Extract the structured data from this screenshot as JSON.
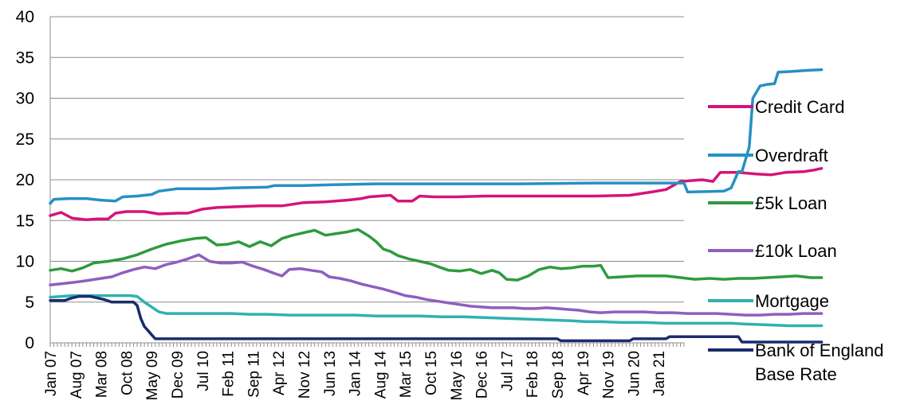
{
  "chart_data": {
    "type": "line",
    "title": "",
    "xlabel": "",
    "ylabel": "",
    "ylim": [
      0,
      40
    ],
    "y_ticks": [
      "0",
      "5",
      "10",
      "15",
      "20",
      "25",
      "30",
      "35",
      "40"
    ],
    "x_tick_labels": [
      "Jan 07",
      "Aug 07",
      "Mar 08",
      "Oct 08",
      "May 09",
      "Dec 09",
      "Jul 10",
      "Feb 11",
      "Sep 11",
      "Apr 12",
      "Nov 12",
      "Jun 13",
      "Jan 14",
      "Aug 14",
      "Mar 15",
      "Oct 15",
      "May 16",
      "Dec 16",
      "Jul 17",
      "Feb 18",
      "Sep 18",
      "Apr 19",
      "Nov 19",
      "Jun 20",
      "Jan 21"
    ],
    "x_range_months": "Jan 07 - Aug 21 (monthly)",
    "grid": "horizontal",
    "legend_position": "right",
    "series": [
      {
        "name": "Credit Card",
        "color": "#d6137a",
        "points": [
          [
            0,
            15.6
          ],
          [
            3,
            16.0
          ],
          [
            6,
            15.3
          ],
          [
            10,
            15.1
          ],
          [
            13,
            15.2
          ],
          [
            16,
            15.2
          ],
          [
            18,
            15.9
          ],
          [
            21,
            16.1
          ],
          [
            26,
            16.1
          ],
          [
            30,
            15.8
          ],
          [
            35,
            15.9
          ],
          [
            38,
            15.9
          ],
          [
            42,
            16.4
          ],
          [
            46,
            16.6
          ],
          [
            52,
            16.7
          ],
          [
            58,
            16.8
          ],
          [
            64,
            16.8
          ],
          [
            70,
            17.2
          ],
          [
            76,
            17.3
          ],
          [
            82,
            17.5
          ],
          [
            86,
            17.7
          ],
          [
            88,
            17.9
          ],
          [
            94,
            18.1
          ],
          [
            96,
            17.4
          ],
          [
            100,
            17.4
          ],
          [
            102,
            18.0
          ],
          [
            106,
            17.9
          ],
          [
            112,
            17.9
          ],
          [
            120,
            18.0
          ],
          [
            135,
            18.0
          ],
          [
            150,
            18.0
          ],
          [
            160,
            18.1
          ],
          [
            166,
            18.5
          ],
          [
            170,
            18.8
          ],
          [
            174,
            19.8
          ],
          [
            180,
            20.0
          ],
          [
            183,
            19.8
          ],
          [
            185,
            20.9
          ],
          [
            190,
            20.9
          ],
          [
            195,
            20.7
          ],
          [
            199,
            20.6
          ],
          [
            203,
            20.9
          ],
          [
            208,
            21.0
          ],
          [
            211,
            21.2
          ],
          [
            213,
            21.4
          ]
        ]
      },
      {
        "name": "Overdraft",
        "color": "#2591c3",
        "points": [
          [
            0,
            17.1
          ],
          [
            1,
            17.6
          ],
          [
            5,
            17.7
          ],
          [
            10,
            17.7
          ],
          [
            14,
            17.5
          ],
          [
            18,
            17.4
          ],
          [
            20,
            17.9
          ],
          [
            24,
            18.0
          ],
          [
            28,
            18.2
          ],
          [
            30,
            18.6
          ],
          [
            35,
            18.9
          ],
          [
            45,
            18.9
          ],
          [
            50,
            19.0
          ],
          [
            60,
            19.1
          ],
          [
            62,
            19.3
          ],
          [
            70,
            19.3
          ],
          [
            78,
            19.4
          ],
          [
            90,
            19.5
          ],
          [
            100,
            19.5
          ],
          [
            110,
            19.5
          ],
          [
            130,
            19.5
          ],
          [
            150,
            19.6
          ],
          [
            167,
            19.6
          ],
          [
            175,
            19.6
          ],
          [
            176,
            18.5
          ],
          [
            186,
            18.6
          ],
          [
            188,
            19.0
          ],
          [
            190,
            21.0
          ],
          [
            191,
            21.0
          ],
          [
            193,
            24.0
          ],
          [
            194,
            30.0
          ],
          [
            196,
            31.5
          ],
          [
            198,
            31.7
          ],
          [
            200,
            31.8
          ],
          [
            201,
            33.2
          ],
          [
            205,
            33.3
          ],
          [
            208,
            33.4
          ],
          [
            213,
            33.5
          ]
        ]
      },
      {
        "name": "£5k Loan",
        "color": "#2e9b3d",
        "points": [
          [
            0,
            8.9
          ],
          [
            3,
            9.1
          ],
          [
            6,
            8.8
          ],
          [
            9,
            9.2
          ],
          [
            12,
            9.8
          ],
          [
            16,
            10.0
          ],
          [
            20,
            10.3
          ],
          [
            24,
            10.8
          ],
          [
            28,
            11.5
          ],
          [
            32,
            12.1
          ],
          [
            36,
            12.5
          ],
          [
            40,
            12.8
          ],
          [
            43,
            12.9
          ],
          [
            46,
            12.0
          ],
          [
            49,
            12.1
          ],
          [
            52,
            12.4
          ],
          [
            55,
            11.8
          ],
          [
            58,
            12.4
          ],
          [
            61,
            11.9
          ],
          [
            64,
            12.8
          ],
          [
            67,
            13.2
          ],
          [
            70,
            13.5
          ],
          [
            73,
            13.8
          ],
          [
            76,
            13.2
          ],
          [
            79,
            13.4
          ],
          [
            82,
            13.6
          ],
          [
            85,
            13.9
          ],
          [
            88,
            13.1
          ],
          [
            90,
            12.4
          ],
          [
            92,
            11.5
          ],
          [
            94,
            11.2
          ],
          [
            96,
            10.7
          ],
          [
            99,
            10.3
          ],
          [
            102,
            10.0
          ],
          [
            105,
            9.7
          ],
          [
            108,
            9.2
          ],
          [
            110,
            8.9
          ],
          [
            113,
            8.8
          ],
          [
            116,
            9.0
          ],
          [
            119,
            8.5
          ],
          [
            122,
            8.9
          ],
          [
            124,
            8.6
          ],
          [
            126,
            7.8
          ],
          [
            129,
            7.7
          ],
          [
            132,
            8.2
          ],
          [
            135,
            9.0
          ],
          [
            138,
            9.3
          ],
          [
            141,
            9.1
          ],
          [
            144,
            9.2
          ],
          [
            147,
            9.4
          ],
          [
            150,
            9.4
          ],
          [
            152,
            9.5
          ],
          [
            154,
            8.0
          ],
          [
            158,
            8.1
          ],
          [
            162,
            8.2
          ],
          [
            166,
            8.2
          ],
          [
            170,
            8.2
          ],
          [
            174,
            8.0
          ],
          [
            178,
            7.8
          ],
          [
            182,
            7.9
          ],
          [
            186,
            7.8
          ],
          [
            190,
            7.9
          ],
          [
            194,
            7.9
          ],
          [
            198,
            8.0
          ],
          [
            202,
            8.1
          ],
          [
            206,
            8.2
          ],
          [
            210,
            8.0
          ],
          [
            213,
            8.0
          ]
        ]
      },
      {
        "name": "£10k Loan",
        "color": "#8e5fbf",
        "points": [
          [
            0,
            7.1
          ],
          [
            4,
            7.3
          ],
          [
            8,
            7.5
          ],
          [
            11,
            7.7
          ],
          [
            14,
            7.9
          ],
          [
            17,
            8.1
          ],
          [
            20,
            8.6
          ],
          [
            23,
            9.0
          ],
          [
            26,
            9.3
          ],
          [
            29,
            9.1
          ],
          [
            32,
            9.6
          ],
          [
            35,
            9.9
          ],
          [
            38,
            10.3
          ],
          [
            41,
            10.8
          ],
          [
            44,
            10.0
          ],
          [
            47,
            9.8
          ],
          [
            50,
            9.8
          ],
          [
            53,
            9.9
          ],
          [
            56,
            9.4
          ],
          [
            59,
            9.0
          ],
          [
            62,
            8.5
          ],
          [
            64,
            8.2
          ],
          [
            66,
            9.0
          ],
          [
            69,
            9.1
          ],
          [
            72,
            8.9
          ],
          [
            75,
            8.7
          ],
          [
            77,
            8.1
          ],
          [
            80,
            7.9
          ],
          [
            83,
            7.6
          ],
          [
            86,
            7.2
          ],
          [
            89,
            6.9
          ],
          [
            92,
            6.6
          ],
          [
            95,
            6.2
          ],
          [
            98,
            5.8
          ],
          [
            101,
            5.6
          ],
          [
            104,
            5.3
          ],
          [
            107,
            5.1
          ],
          [
            110,
            4.9
          ],
          [
            113,
            4.7
          ],
          [
            116,
            4.5
          ],
          [
            119,
            4.4
          ],
          [
            122,
            4.3
          ],
          [
            125,
            4.3
          ],
          [
            128,
            4.3
          ],
          [
            131,
            4.2
          ],
          [
            134,
            4.2
          ],
          [
            137,
            4.3
          ],
          [
            140,
            4.2
          ],
          [
            143,
            4.1
          ],
          [
            146,
            4.0
          ],
          [
            149,
            3.8
          ],
          [
            152,
            3.7
          ],
          [
            156,
            3.8
          ],
          [
            160,
            3.8
          ],
          [
            164,
            3.8
          ],
          [
            168,
            3.7
          ],
          [
            172,
            3.7
          ],
          [
            176,
            3.6
          ],
          [
            180,
            3.6
          ],
          [
            184,
            3.6
          ],
          [
            188,
            3.5
          ],
          [
            192,
            3.4
          ],
          [
            196,
            3.4
          ],
          [
            200,
            3.5
          ],
          [
            204,
            3.5
          ],
          [
            208,
            3.6
          ],
          [
            213,
            3.6
          ]
        ]
      },
      {
        "name": "Mortgage",
        "color": "#2fb2b0",
        "points": [
          [
            0,
            5.6
          ],
          [
            6,
            5.8
          ],
          [
            12,
            5.8
          ],
          [
            18,
            5.8
          ],
          [
            22,
            5.8
          ],
          [
            24,
            5.7
          ],
          [
            26,
            5.0
          ],
          [
            28,
            4.4
          ],
          [
            30,
            3.8
          ],
          [
            32,
            3.6
          ],
          [
            35,
            3.6
          ],
          [
            40,
            3.6
          ],
          [
            45,
            3.6
          ],
          [
            50,
            3.6
          ],
          [
            55,
            3.5
          ],
          [
            60,
            3.5
          ],
          [
            66,
            3.4
          ],
          [
            72,
            3.4
          ],
          [
            78,
            3.4
          ],
          [
            84,
            3.4
          ],
          [
            90,
            3.3
          ],
          [
            96,
            3.3
          ],
          [
            102,
            3.3
          ],
          [
            108,
            3.2
          ],
          [
            114,
            3.2
          ],
          [
            120,
            3.1
          ],
          [
            126,
            3.0
          ],
          [
            132,
            2.9
          ],
          [
            138,
            2.8
          ],
          [
            144,
            2.7
          ],
          [
            148,
            2.6
          ],
          [
            152,
            2.6
          ],
          [
            158,
            2.5
          ],
          [
            164,
            2.5
          ],
          [
            170,
            2.4
          ],
          [
            176,
            2.4
          ],
          [
            182,
            2.4
          ],
          [
            188,
            2.4
          ],
          [
            192,
            2.3
          ],
          [
            198,
            2.2
          ],
          [
            204,
            2.1
          ],
          [
            210,
            2.1
          ],
          [
            213,
            2.1
          ]
        ]
      },
      {
        "name": "Bank of England Base Rate",
        "color": "#1c2b6d",
        "points": [
          [
            0,
            5.2
          ],
          [
            4,
            5.2
          ],
          [
            6,
            5.5
          ],
          [
            8,
            5.7
          ],
          [
            11,
            5.7
          ],
          [
            13,
            5.5
          ],
          [
            15,
            5.3
          ],
          [
            17,
            5.0
          ],
          [
            20,
            5.0
          ],
          [
            23,
            5.0
          ],
          [
            24,
            4.6
          ],
          [
            25,
            3.0
          ],
          [
            26,
            2.0
          ],
          [
            27,
            1.5
          ],
          [
            28,
            1.0
          ],
          [
            29,
            0.5
          ],
          [
            140,
            0.5
          ],
          [
            141,
            0.25
          ],
          [
            160,
            0.25
          ],
          [
            161,
            0.5
          ],
          [
            170,
            0.5
          ],
          [
            171,
            0.75
          ],
          [
            190,
            0.75
          ],
          [
            191,
            0.1
          ],
          [
            213,
            0.1
          ]
        ]
      }
    ]
  }
}
